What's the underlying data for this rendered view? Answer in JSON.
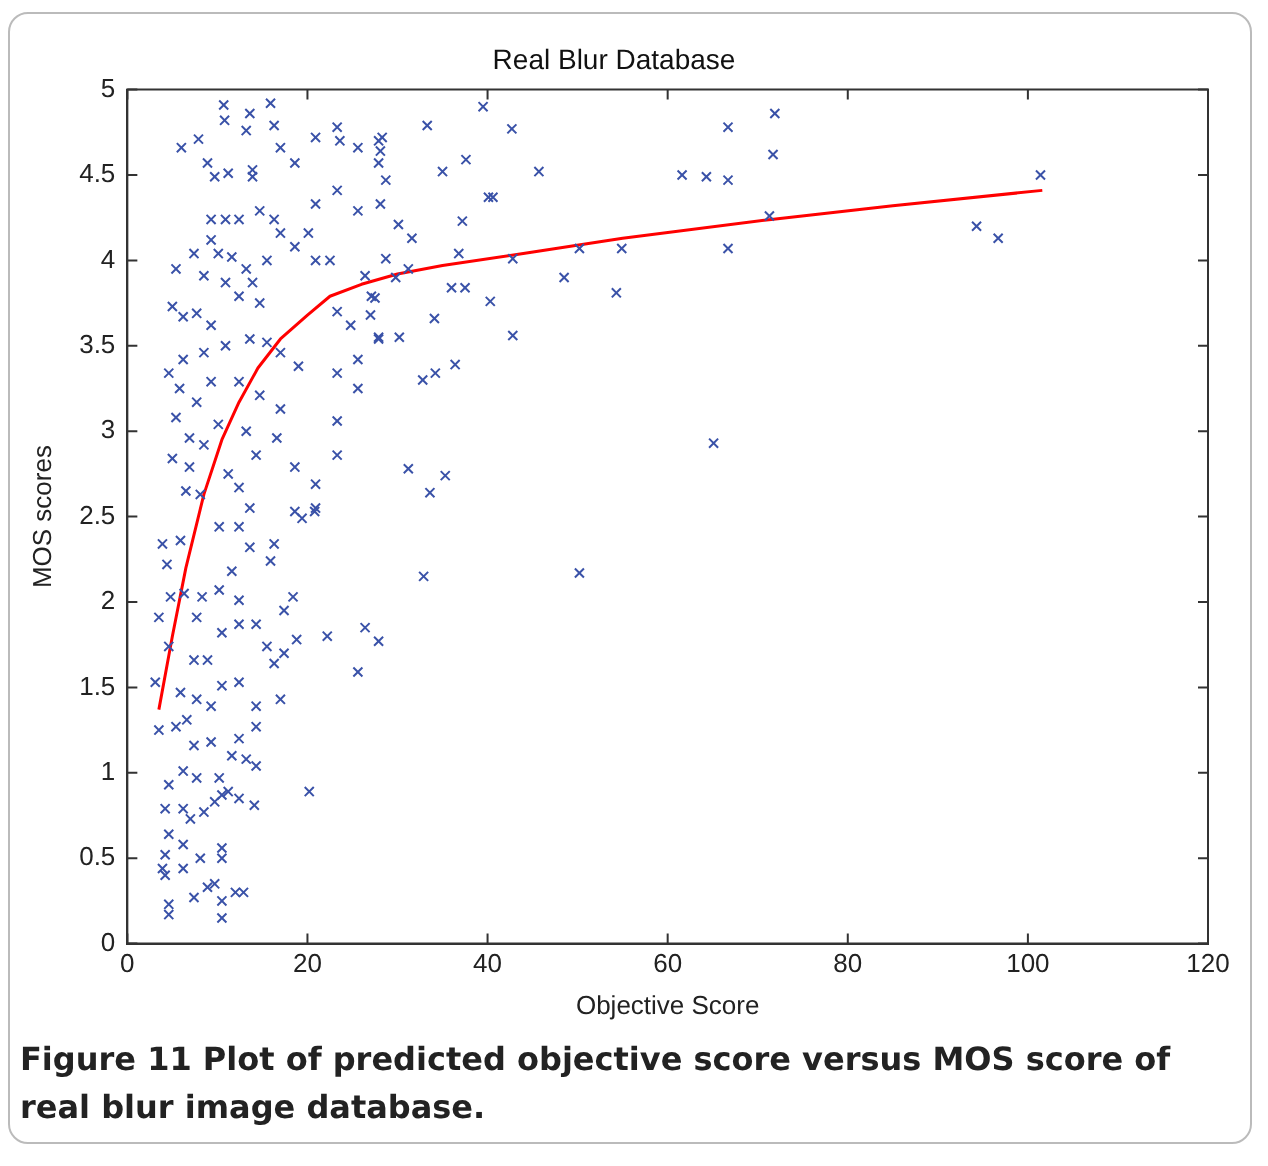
{
  "chart_data": {
    "type": "scatter",
    "title": "Real Blur Database",
    "xlabel": "Objective Score",
    "ylabel": "MOS scores",
    "annotations": [
      "Figure 11 Plot of predicted objective score versus MOS score of real blur image database."
    ],
    "xlim": [
      0,
      120
    ],
    "xticks": [
      0,
      20,
      40,
      60,
      80,
      100,
      120
    ],
    "ylim": [
      0,
      5
    ],
    "yticks": [
      0,
      0.5,
      1,
      1.5,
      2,
      2.5,
      3,
      3.5,
      4,
      4.5,
      5
    ],
    "grid": false,
    "legend": false,
    "series": [
      {
        "color": "#3a52a8",
        "marker": "cross",
        "x": [
          39.5,
          33.3,
          42.7,
          66.7,
          71.9,
          71.7,
          61.6,
          64.3,
          66.7,
          101.4,
          94.3,
          96.7,
          66.7,
          71.3,
          54.9,
          50.2,
          48.5,
          54.3,
          65.1,
          50.2,
          32.9,
          31.2,
          33.6,
          35.3,
          27.9,
          26.4,
          42.8,
          40.3,
          36.4,
          34.2,
          32.8,
          34.1,
          30.2,
          27.9,
          36.0,
          37.5,
          36.8,
          37.2,
          40.1,
          40.6,
          37.6,
          35.0,
          45.7,
          42.8,
          31.2,
          29.8,
          31.6,
          30.1,
          28.7,
          28.7,
          28.3,
          28.1,
          28.1,
          27.5,
          27.0,
          6.0,
          7.9,
          10.7,
          10.8,
          13.6,
          15.9,
          16.3,
          13.2,
          8.9,
          9.7,
          11.2,
          13.9,
          13.9,
          17.0,
          18.6,
          20.9,
          23.3,
          23.6,
          25.6,
          27.9,
          27.9,
          20.9,
          23.3,
          25.6,
          9.3,
          10.9,
          12.4,
          14.7,
          16.3,
          17.0,
          18.6,
          20.1,
          5.4,
          7.4,
          9.3,
          10.1,
          11.6,
          13.2,
          13.9,
          15.5,
          20.9,
          22.5,
          8.5,
          10.9,
          12.4,
          14.7,
          5.0,
          6.2,
          7.7,
          9.3,
          8.5,
          10.9,
          13.6,
          15.5,
          17.0,
          19.0,
          4.6,
          6.2,
          5.8,
          7.7,
          9.3,
          12.4,
          14.7,
          17.0,
          5.4,
          6.9,
          8.5,
          10.1,
          13.2,
          14.3,
          16.6,
          18.6,
          20.9,
          5.0,
          6.9,
          6.5,
          8.1,
          11.2,
          12.4,
          18.6,
          20.9,
          23.3,
          23.3,
          23.3,
          25.6,
          25.6,
          27.1,
          27.9,
          24.8,
          23.3,
          26.4,
          3.9,
          5.9,
          4.4,
          4.8,
          6.3,
          8.3,
          10.2,
          12.4,
          13.6,
          16.3,
          15.9,
          11.6,
          10.2,
          7.7,
          3.5,
          4.6,
          7.4,
          8.9,
          10.5,
          12.4,
          14.3,
          15.5,
          17.4,
          17.4,
          18.4,
          19.4,
          20.8,
          18.8,
          3.1,
          5.9,
          7.7,
          9.3,
          10.5,
          12.4,
          6.6,
          5.4,
          3.5,
          7.4,
          9.3,
          11.6,
          14.3,
          14.3,
          12.4,
          13.2,
          14.3,
          4.6,
          6.2,
          7.7,
          10.2,
          11.2,
          12.4,
          4.2,
          6.2,
          7.0,
          8.5,
          9.7,
          10.5,
          14.1,
          4.6,
          6.2,
          4.2,
          3.9,
          4.2,
          6.2,
          8.1,
          10.5,
          10.5,
          4.6,
          4.6,
          7.4,
          8.9,
          9.7,
          10.5,
          10.5,
          12.9,
          12.0,
          20.2,
          25.6,
          22.2,
          16.3,
          17.0,
          12.4,
          13.6
        ],
        "values": [
          4.9,
          4.79,
          4.77,
          4.78,
          4.86,
          4.62,
          4.5,
          4.49,
          4.47,
          4.5,
          4.2,
          4.13,
          4.07,
          4.26,
          4.07,
          4.07,
          3.9,
          3.81,
          2.93,
          2.17,
          2.15,
          2.78,
          2.64,
          2.74,
          1.77,
          1.85,
          3.56,
          3.76,
          3.39,
          3.34,
          3.3,
          3.66,
          3.55,
          3.55,
          3.84,
          3.84,
          4.04,
          4.23,
          4.37,
          4.37,
          4.59,
          4.52,
          4.52,
          4.01,
          3.95,
          3.9,
          4.13,
          4.21,
          4.01,
          4.47,
          4.72,
          4.64,
          4.33,
          3.78,
          3.68,
          4.66,
          4.71,
          4.91,
          4.82,
          4.86,
          4.92,
          4.79,
          4.76,
          4.57,
          4.49,
          4.51,
          4.53,
          4.49,
          4.66,
          4.57,
          4.72,
          4.78,
          4.7,
          4.66,
          4.7,
          4.57,
          4.33,
          4.41,
          4.29,
          4.24,
          4.24,
          4.24,
          4.29,
          4.24,
          4.16,
          4.08,
          4.16,
          3.95,
          4.04,
          4.12,
          4.04,
          4.02,
          3.95,
          3.87,
          4.0,
          4.0,
          4.0,
          3.91,
          3.87,
          3.79,
          3.75,
          3.73,
          3.67,
          3.69,
          3.62,
          3.46,
          3.5,
          3.54,
          3.52,
          3.46,
          3.38,
          3.34,
          3.42,
          3.25,
          3.17,
          3.29,
          3.29,
          3.21,
          3.13,
          3.08,
          2.96,
          2.92,
          3.04,
          3.0,
          2.86,
          2.96,
          2.79,
          2.69,
          2.84,
          2.79,
          2.65,
          2.63,
          2.75,
          2.67,
          2.53,
          2.55,
          3.06,
          2.86,
          3.34,
          3.42,
          3.25,
          3.79,
          3.54,
          3.62,
          3.7,
          3.91,
          2.34,
          2.36,
          2.22,
          2.03,
          2.05,
          2.03,
          2.44,
          2.44,
          2.32,
          2.34,
          2.24,
          2.18,
          2.07,
          1.91,
          1.91,
          1.74,
          1.66,
          1.66,
          1.82,
          1.87,
          1.87,
          1.74,
          1.7,
          1.95,
          2.03,
          2.49,
          2.53,
          1.78,
          1.53,
          1.47,
          1.43,
          1.39,
          1.51,
          1.53,
          1.31,
          1.27,
          1.25,
          1.16,
          1.18,
          1.1,
          1.39,
          1.27,
          1.2,
          1.08,
          1.04,
          0.93,
          1.01,
          0.97,
          0.97,
          0.89,
          0.85,
          0.79,
          0.79,
          0.73,
          0.77,
          0.83,
          0.87,
          0.81,
          0.64,
          0.58,
          0.52,
          0.44,
          0.4,
          0.44,
          0.5,
          0.56,
          0.5,
          0.23,
          0.17,
          0.27,
          0.33,
          0.35,
          0.25,
          0.15,
          0.3,
          0.3,
          0.89,
          1.59,
          1.8,
          1.64,
          1.43,
          2.01,
          2.55
        ]
      },
      {
        "type": "line",
        "color": "#ff0000",
        "marker": "none",
        "line_style": "solid",
        "x": [
          3.5,
          5,
          6.5,
          8.5,
          10.5,
          12.4,
          14.5,
          17,
          20,
          22.5,
          26,
          30,
          35,
          42.7,
          55,
          71.5,
          85,
          101.6
        ],
        "values": [
          1.37,
          1.8,
          2.2,
          2.63,
          2.95,
          3.17,
          3.37,
          3.54,
          3.68,
          3.79,
          3.86,
          3.92,
          3.97,
          4.03,
          4.13,
          4.24,
          4.32,
          4.41
        ]
      }
    ]
  }
}
